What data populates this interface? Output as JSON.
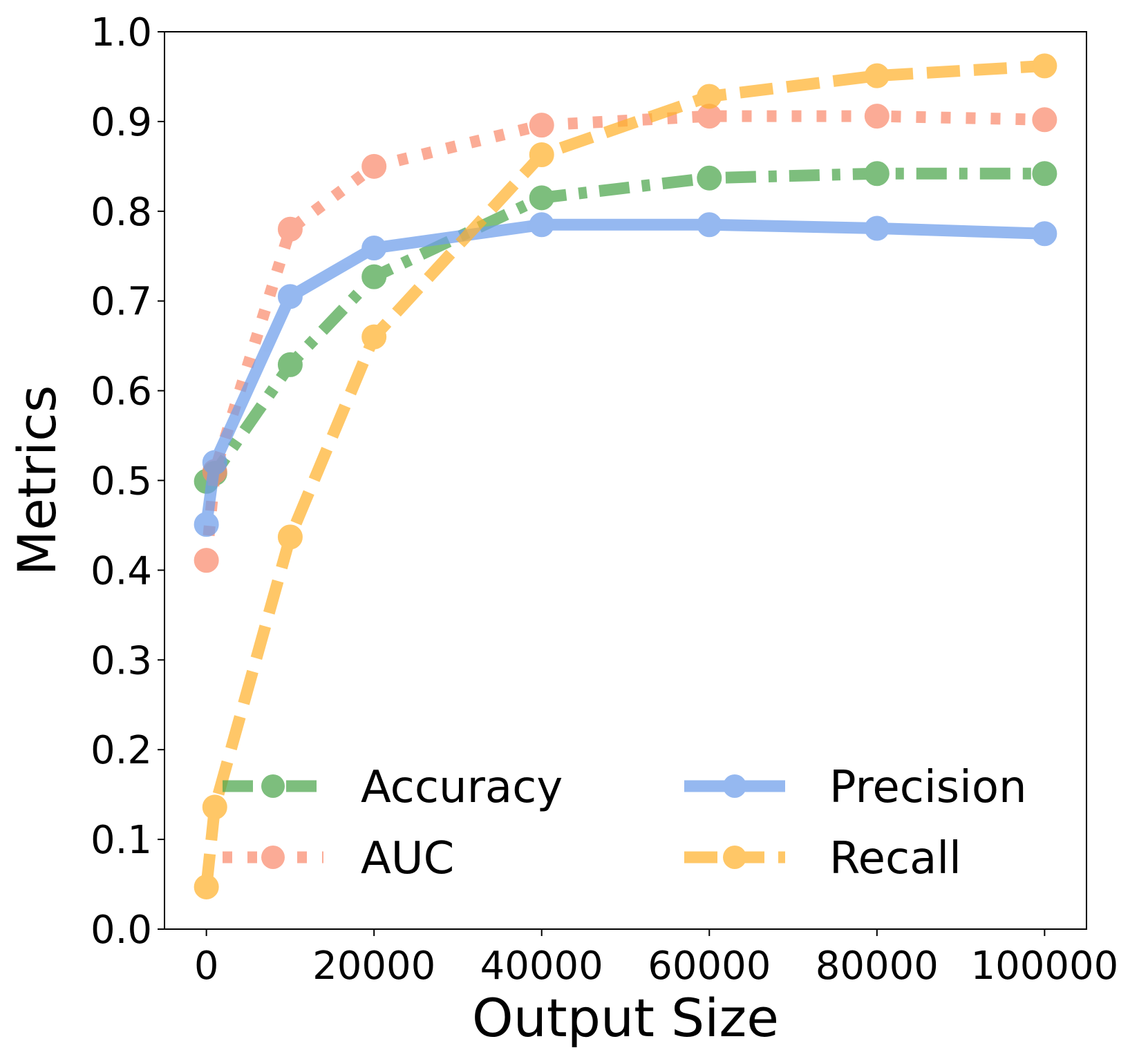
{
  "chart_data": {
    "type": "line",
    "xlabel": "Output Size",
    "ylabel": "Metrics",
    "xlim": [
      -5000,
      105000
    ],
    "ylim": [
      0.0,
      1.0
    ],
    "xticks": [
      0,
      20000,
      40000,
      60000,
      80000,
      100000
    ],
    "xtick_labels": [
      "0",
      "20000",
      "40000",
      "60000",
      "80000",
      "100000"
    ],
    "yticks": [
      0.0,
      0.1,
      0.2,
      0.3,
      0.4,
      0.5,
      0.6,
      0.7,
      0.8,
      0.9,
      1.0
    ],
    "ytick_labels": [
      "0.0",
      "0.1",
      "0.2",
      "0.3",
      "0.4",
      "0.5",
      "0.6",
      "0.7",
      "0.8",
      "0.9",
      "1.0"
    ],
    "grid": false,
    "legend_position": "lower-right",
    "x": [
      0,
      1000,
      10000,
      20000,
      40000,
      60000,
      80000,
      100000
    ],
    "series": [
      {
        "name": "Accuracy",
        "color": "#4ca64c",
        "style": "dashdot",
        "values": [
          0.499,
          0.508,
          0.629,
          0.727,
          0.815,
          0.837,
          0.842,
          0.842
        ]
      },
      {
        "name": "AUC",
        "color": "#fa8c6e",
        "style": "dotted",
        "values": [
          0.411,
          0.51,
          0.78,
          0.85,
          0.896,
          0.906,
          0.906,
          0.902
        ]
      },
      {
        "name": "Precision",
        "color": "#6d9eeb",
        "style": "solid",
        "values": [
          0.451,
          0.52,
          0.705,
          0.759,
          0.785,
          0.785,
          0.781,
          0.775
        ]
      },
      {
        "name": "Recall",
        "color": "#ffb22e",
        "style": "dashed",
        "values": [
          0.047,
          0.136,
          0.437,
          0.66,
          0.863,
          0.928,
          0.951,
          0.962
        ]
      }
    ]
  }
}
